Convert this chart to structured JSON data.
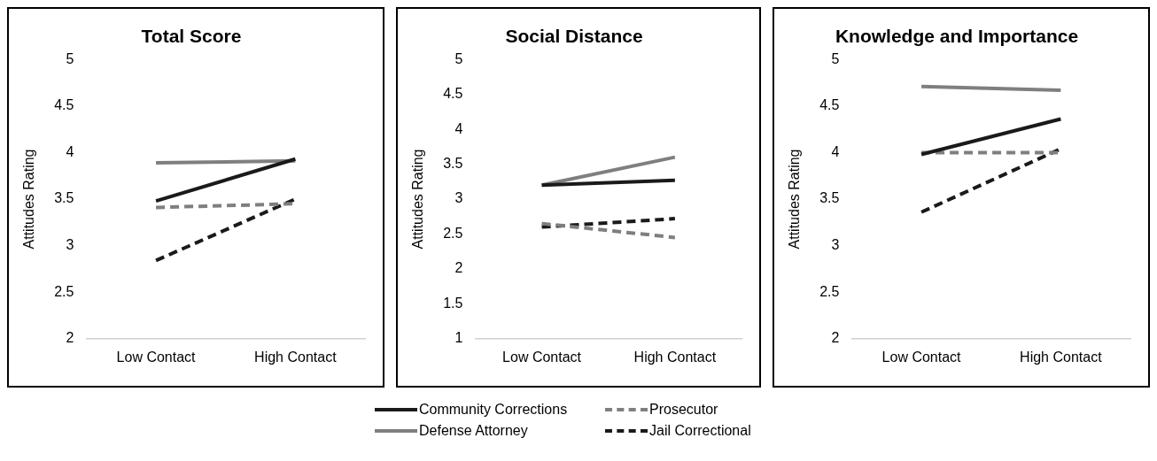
{
  "chart_data": [
    {
      "type": "line",
      "title": "Total Score",
      "ylabel": "Attitudes Rating",
      "categories": [
        "Low Contact",
        "High Contact"
      ],
      "ylim": [
        2,
        5
      ],
      "yticks": [
        2,
        2.5,
        3,
        3.5,
        4,
        4.5,
        5
      ],
      "grid": false,
      "legend": "bottom",
      "marker": "none",
      "series": [
        {
          "name": "Community Corrections",
          "color": "#1a1a1a",
          "values": [
            3.48,
            3.93
          ]
        },
        {
          "name": "Prosecutor",
          "color": "#7f7f7f",
          "line_style": "dashed",
          "values": [
            3.41,
            3.45
          ]
        },
        {
          "name": "Defense Attorney",
          "color": "#7f7f7f",
          "values": [
            3.89,
            3.91
          ]
        },
        {
          "name": "Jail Correctional",
          "color": "#1a1a1a",
          "line_style": "dashed",
          "values": [
            2.84,
            3.5
          ]
        }
      ]
    },
    {
      "type": "line",
      "title": "Social Distance",
      "ylabel": "Attitudes Rating",
      "categories": [
        "Low Contact",
        "High Contact"
      ],
      "ylim": [
        1,
        5
      ],
      "yticks": [
        1,
        1.5,
        2,
        2.5,
        3,
        3.5,
        4,
        4.5,
        5
      ],
      "grid": false,
      "marker": "none",
      "series": [
        {
          "color": "#1a1a1a",
          "values": [
            3.2,
            3.27
          ]
        },
        {
          "color": "#7f7f7f",
          "line_style": "dashed",
          "values": [
            2.65,
            2.45
          ]
        },
        {
          "color": "#7f7f7f",
          "values": [
            3.2,
            3.6
          ]
        },
        {
          "color": "#1a1a1a",
          "line_style": "dashed",
          "values": [
            2.6,
            2.72
          ]
        }
      ]
    },
    {
      "type": "line",
      "title": "Knowledge and Importance",
      "ylabel": "Attitudes Rating",
      "categories": [
        "Low Contact",
        "High Contact"
      ],
      "ylim": [
        2,
        5
      ],
      "yticks": [
        2,
        2.5,
        3,
        3.5,
        4,
        4.5,
        5
      ],
      "grid": false,
      "marker": "none",
      "series": [
        {
          "color": "#1a1a1a",
          "values": [
            3.98,
            4.36
          ]
        },
        {
          "color": "#7f7f7f",
          "line_style": "dashed",
          "values": [
            4.0,
            4.0
          ]
        },
        {
          "color": "#7f7f7f",
          "values": [
            4.71,
            4.67
          ]
        },
        {
          "color": "#1a1a1a",
          "line_style": "dashed",
          "values": [
            3.36,
            4.04
          ]
        }
      ]
    }
  ]
}
